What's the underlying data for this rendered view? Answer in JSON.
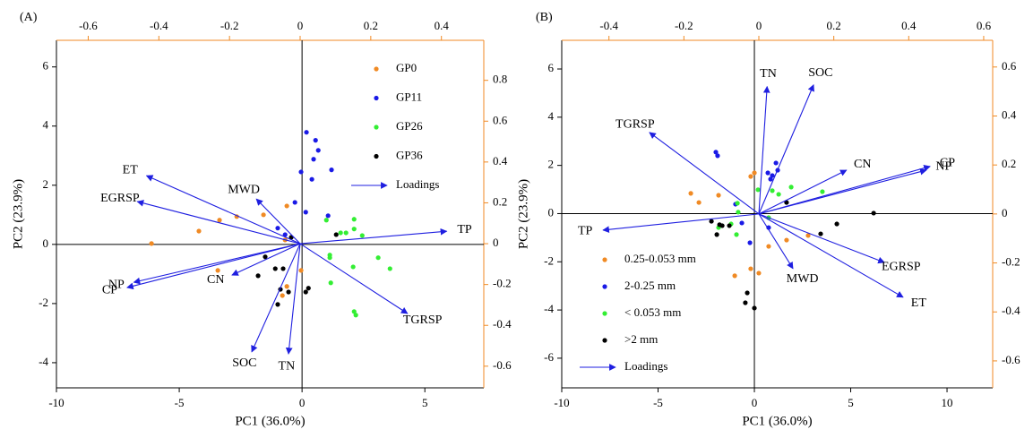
{
  "chart_data": [
    {
      "type": "biplot",
      "panel_label": "(A)",
      "xlabel": "PC1 (36.0%)",
      "ylabel": "PC2 (23.9%)",
      "xlim": [
        -10,
        7.4
      ],
      "ylim": [
        -4.85,
        6.9
      ],
      "xticks": [
        -10,
        -5,
        0,
        5
      ],
      "yticks": [
        -4,
        -2,
        0,
        2,
        4,
        6
      ],
      "x2lim": [
        -0.69,
        0.52
      ],
      "y2lim": [
        -0.706,
        0.996
      ],
      "x2ticks": [
        -0.6,
        -0.4,
        -0.2,
        0,
        0.2,
        0.4
      ],
      "y2ticks": [
        -0.6,
        -0.4,
        -0.2,
        0,
        0.2,
        0.4,
        0.6,
        0.8
      ],
      "secondary_axis_color": "#f08a24",
      "legend": "upper right",
      "series": [
        {
          "name": "GP0",
          "color": "#f08a24",
          "x": [
            -6.13,
            -4.2,
            -3.36,
            -2.66,
            -1.57,
            -3.43,
            -0.62,
            -0.69,
            -0.8,
            -0.04,
            -0.62
          ],
          "y": [
            0.03,
            0.45,
            0.82,
            0.94,
            1.0,
            -0.88,
            1.3,
            0.15,
            -1.73,
            -0.88,
            -1.42
          ]
        },
        {
          "name": "GP11",
          "color": "#1a1ae6",
          "x": [
            0.18,
            0.55,
            0.66,
            0.47,
            1.2,
            -0.04,
            0.4,
            -0.29,
            -0.99,
            0.15,
            1.06,
            -0.69
          ],
          "y": [
            3.79,
            3.52,
            3.18,
            2.88,
            2.52,
            2.45,
            2.2,
            1.42,
            0.55,
            1.09,
            0.97,
            0.33
          ]
        },
        {
          "name": "GP26",
          "color": "#33ee33",
          "x": [
            0.99,
            1.57,
            1.79,
            2.12,
            2.12,
            2.45,
            1.13,
            1.13,
            1.17,
            2.08,
            3.1,
            3.58,
            2.12,
            2.19
          ],
          "y": [
            0.82,
            0.39,
            0.39,
            0.85,
            0.52,
            0.3,
            -0.36,
            -0.45,
            -1.3,
            -0.76,
            -0.45,
            -0.82,
            -2.27,
            -2.39
          ]
        },
        {
          "name": "GP36",
          "color": "#000000",
          "x": [
            1.39,
            -0.44,
            -1.5,
            -1.09,
            -0.77,
            -1.79,
            -0.88,
            -0.55,
            -0.99,
            0.26,
            0.15
          ],
          "y": [
            0.33,
            0.24,
            -0.42,
            -0.82,
            -0.82,
            -1.06,
            -1.52,
            -1.61,
            -2.03,
            -1.48,
            -1.61
          ]
        }
      ],
      "loadings": {
        "label": "Loadings",
        "color": "#1f1fe0",
        "names": [
          "TP",
          "TGRSP",
          "TN",
          "SOC",
          "CN",
          "CP",
          "NP",
          "EGRSP",
          "ET",
          "MWD"
        ],
        "x": [
          0.415,
          0.304,
          -0.033,
          -0.137,
          -0.193,
          -0.49,
          -0.471,
          -0.461,
          -0.435,
          -0.124
        ],
        "y": [
          0.061,
          -0.342,
          -0.54,
          -0.53,
          -0.154,
          -0.215,
          -0.189,
          0.206,
          0.333,
          0.219
        ]
      }
    },
    {
      "type": "biplot",
      "panel_label": "(B)",
      "xlabel": "PC1 (36.0%)",
      "ylabel": "PC2 (23.9%)",
      "xlim": [
        -10,
        12.37
      ],
      "ylim": [
        -7.23,
        7.19
      ],
      "xticks": [
        -10,
        -5,
        0,
        5,
        10
      ],
      "yticks": [
        -6,
        -4,
        -2,
        0,
        2,
        4,
        6
      ],
      "x2lim": [
        -0.526,
        0.624
      ],
      "y2lim": [
        -0.71,
        0.709
      ],
      "x2ticks": [
        -0.4,
        -0.2,
        0,
        0.2,
        0.4,
        0.6
      ],
      "y2ticks": [
        -0.6,
        -0.4,
        -0.2,
        0,
        0.2,
        0.4,
        0.6
      ],
      "secondary_axis_color": "#f08a24",
      "legend": "lower left",
      "series": [
        {
          "name": "0.25-0.053 mm",
          "color": "#f08a24",
          "x": [
            -3.3,
            -2.88,
            -1.86,
            -0.19,
            0,
            -0.19,
            0.23,
            -1.02,
            0.74,
            1.67,
            2.79
          ],
          "y": [
            0.84,
            0.46,
            0.76,
            1.54,
            1.69,
            -2.29,
            -2.47,
            -2.58,
            -1.36,
            -1.1,
            -0.91
          ]
        },
        {
          "name": "2-0.25 mm",
          "color": "#1a1ae6",
          "x": [
            -2.0,
            -1.91,
            1.12,
            0.93,
            0.7,
            1.21,
            0.84,
            -0.98,
            -0.65,
            0.74,
            -0.23
          ],
          "y": [
            2.55,
            2.4,
            2.1,
            1.58,
            1.69,
            1.8,
            1.43,
            0.39,
            -0.39,
            -0.58,
            -1.21
          ]
        },
        {
          "name": "< 0.053 mm",
          "color": "#33ee33",
          "x": [
            -0.88,
            0.19,
            0.93,
            1.26,
            1.91,
            3.53,
            -0.84,
            -1.21,
            -1.86,
            -0.93,
            0.74
          ],
          "y": [
            0.43,
            0.99,
            0.95,
            0.8,
            1.1,
            0.91,
            0.06,
            -0.43,
            -0.58,
            -0.87,
            -0.17
          ]
        },
        {
          "name": ">2 mm",
          "color": "#000000",
          "x": [
            -2.23,
            -1.81,
            -1.67,
            -1.95,
            -1.3,
            1.67,
            4.28,
            3.44,
            6.19,
            -0.37,
            -0.47,
            0
          ],
          "y": [
            -0.32,
            -0.46,
            -0.5,
            -0.87,
            -0.5,
            0.46,
            -0.43,
            -0.84,
            0.02,
            -3.29,
            -3.7,
            -3.92
          ]
        }
      ],
      "loadings": {
        "label": "Loadings",
        "color": "#1f1fe0",
        "names": [
          "TN",
          "SOC",
          "TGRSP",
          "CN",
          "CP",
          "NP",
          "TP",
          "EGRSP",
          "ET",
          "MWD"
        ],
        "x": [
          0.022,
          0.146,
          -0.292,
          0.234,
          0.457,
          0.447,
          -0.416,
          0.335,
          0.385,
          0.091
        ],
        "y": [
          0.52,
          0.527,
          0.333,
          0.179,
          0.194,
          0.179,
          -0.066,
          -0.198,
          -0.34,
          -0.223
        ]
      }
    }
  ]
}
